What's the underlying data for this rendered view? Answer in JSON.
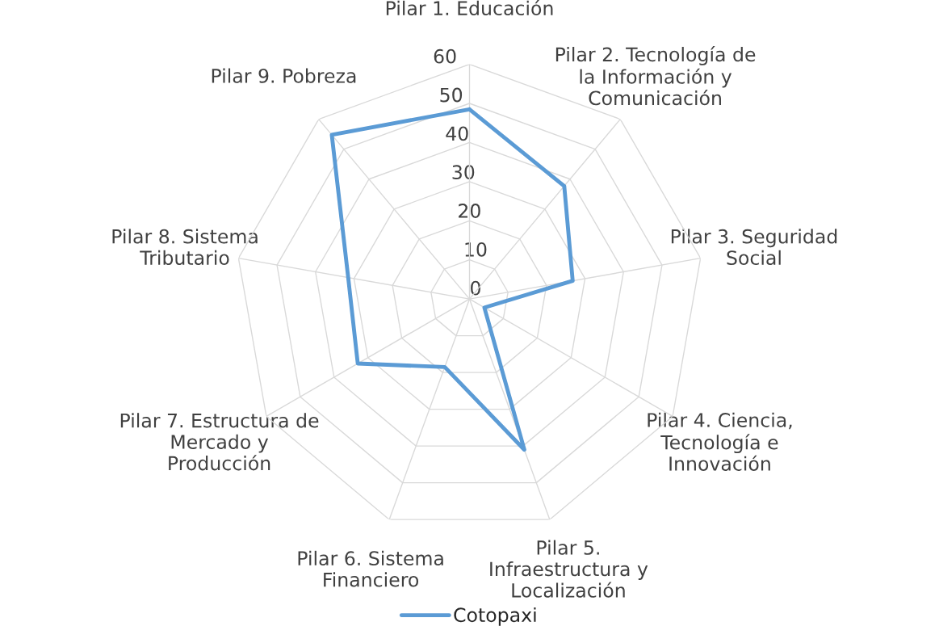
{
  "chart_data": {
    "type": "radar",
    "categories": [
      "Pilar 1. Educación",
      "Pilar 2. Tecnología de\nla Información y\nComunicación",
      "Pilar 3. Seguridad\nSocial",
      "Pilar 4. Ciencia,\nTecnología e\nInnovación",
      "Pilar 5.\nInfraestructura y\nLocalización",
      "Pilar 6. Sistema\nFinanciero",
      "Pilar 7. Estructura de\nMercado y\nProducción",
      "Pilar 8. Sistema\nTributario",
      "Pilar 9. Pobreza"
    ],
    "series": [
      {
        "name": "Cotopaxi",
        "color": "#5b9bd5",
        "values": [
          48.5,
          37.7,
          26.8,
          4.4,
          41,
          18.5,
          33,
          31.5,
          54.8
        ]
      }
    ],
    "ylim": [
      0,
      60
    ],
    "yticks": [
      0,
      10,
      20,
      30,
      40,
      50,
      60
    ],
    "grid": true,
    "legend": "bottom"
  }
}
